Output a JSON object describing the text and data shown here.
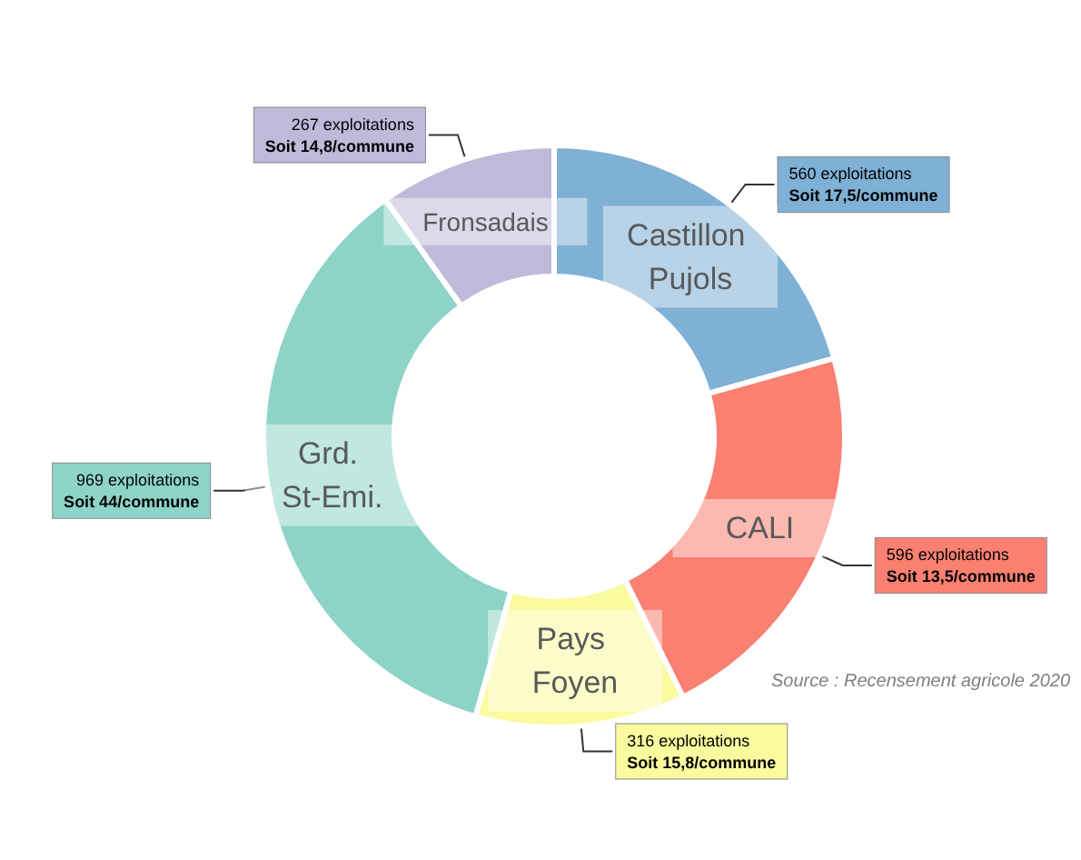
{
  "chart_data": {
    "type": "donut",
    "categories": [
      "Castillon Pujols",
      "CALI",
      "Pays Foyen",
      "Grd. St-Emi.",
      "Fronsadais"
    ],
    "values": [
      560,
      596,
      316,
      969,
      267
    ],
    "colors": [
      "#7fb0d5",
      "#fa8072",
      "#fafa9e",
      "#8dd3c7",
      "#bebada"
    ],
    "value_labels": [
      "560 exploitations\nSoit 17,5/commune",
      "596 exploitations\nSoit 13,5/commune",
      "316 exploitations\nSoit 15,8/commune",
      "969 exploitations\nSoit 44/commune",
      "267 exploitations\nSoit 14,8/commune"
    ],
    "annotations": [
      "Source : Recensement agricole 2020"
    ],
    "legend": false
  }
}
